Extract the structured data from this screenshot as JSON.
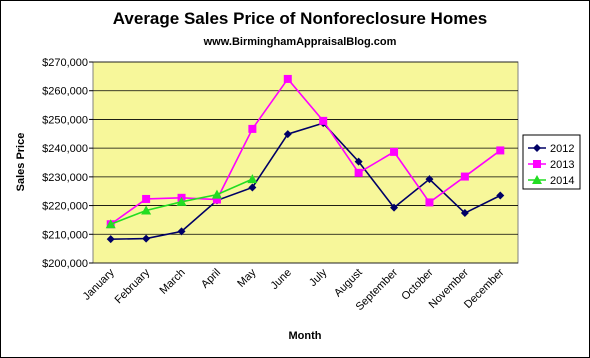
{
  "chart_data": {
    "type": "line",
    "title": "Average Sales Price of Nonforeclosure Homes",
    "subtitle": "www.BirminghamAppraisalBlog.com",
    "x_label": "Month",
    "y_label": "Sales Price",
    "categories": [
      "January",
      "February",
      "March",
      "April",
      "May",
      "June",
      "July",
      "August",
      "September",
      "October",
      "November",
      "December"
    ],
    "series": [
      {
        "name": "2012",
        "color": "#000066",
        "marker": "diamond",
        "values": [
          208300,
          208500,
          211000,
          221800,
          226300,
          244900,
          248700,
          235300,
          219300,
          229200,
          217400,
          223500
        ]
      },
      {
        "name": "2013",
        "color": "#ff00ff",
        "marker": "square",
        "values": [
          213500,
          222300,
          222700,
          222100,
          246700,
          264100,
          249500,
          231400,
          238700,
          221100,
          230100,
          239200
        ]
      },
      {
        "name": "2014",
        "color": "#22dd22",
        "marker": "triangle",
        "values": [
          213500,
          218300,
          221300,
          223800,
          229200,
          null,
          null,
          null,
          null,
          null,
          null,
          null
        ]
      }
    ],
    "ylim": [
      200000,
      270000
    ],
    "yticks": [
      {
        "value": 200000,
        "label": "$200,000"
      },
      {
        "value": 210000,
        "label": "$210,000"
      },
      {
        "value": 220000,
        "label": "$220,000"
      },
      {
        "value": 230000,
        "label": "$230,000"
      },
      {
        "value": 240000,
        "label": "$240,000"
      },
      {
        "value": 250000,
        "label": "$250,000"
      },
      {
        "value": 260000,
        "label": "$260,000"
      },
      {
        "value": 270000,
        "label": "$270,000"
      }
    ],
    "grid": true,
    "legend": "right"
  }
}
